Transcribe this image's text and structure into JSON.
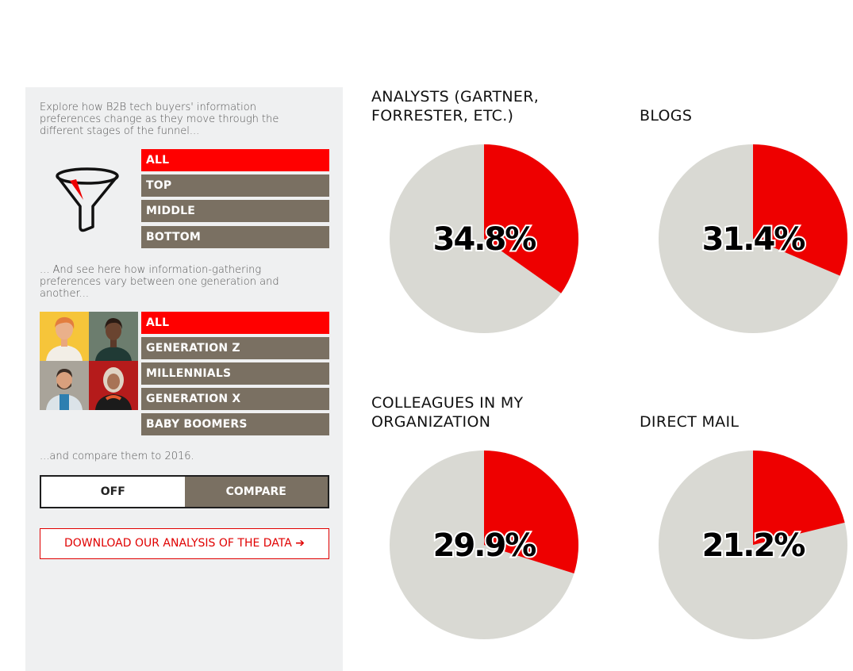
{
  "sidebar": {
    "intro_funnel": "Explore how B2B tech buyers' information preferences change as they move through the different stages of the funnel...",
    "funnel_options": [
      "ALL",
      "TOP",
      "MIDDLE",
      "BOTTOM"
    ],
    "intro_generation": "... And see here how information-gathering preferences vary between one generation and another...",
    "generation_options": [
      "ALL",
      "GENERATION Z",
      "MILLENNIALS",
      "GENERATION X",
      "BABY BOOMERS"
    ],
    "intro_compare": "...and compare them to 2016.",
    "toggle": {
      "off_label": "OFF",
      "compare_label": "COMPARE"
    },
    "download_label": "DOWNLOAD OUR ANALYSIS OF THE DATA ➔"
  },
  "colors": {
    "accent": "#ff0000",
    "pie_red": "#ee0000",
    "pie_grey": "#d9d9d3",
    "option_bg": "#7a7062",
    "panel_bg": "#eff0f1"
  },
  "chart_data": [
    {
      "type": "pie",
      "title": "ANALYSTS (GARTNER, FORRESTER, ETC.)",
      "value": 34.8,
      "label": "34.8%"
    },
    {
      "type": "pie",
      "title": "BLOGS",
      "value": 31.4,
      "label": "31.4%"
    },
    {
      "type": "pie",
      "title": "COLLEAGUES IN MY ORGANIZATION",
      "value": 29.9,
      "label": "29.9%"
    },
    {
      "type": "pie",
      "title": "DIRECT MAIL",
      "value": 21.2,
      "label": "21.2%"
    }
  ]
}
